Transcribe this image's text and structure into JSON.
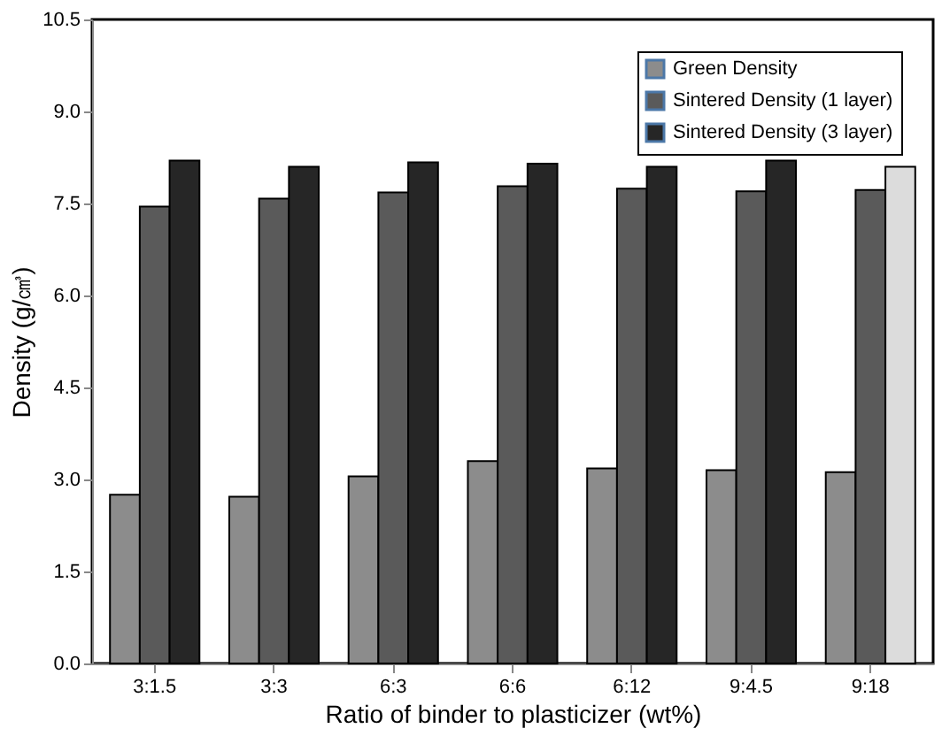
{
  "chart_data": {
    "type": "bar",
    "xlabel": "Ratio of binder to plasticizer (wt%)",
    "ylabel": "Density (g/㎤)",
    "categories": [
      "3:1.5",
      "3:3",
      "6:3",
      "6:6",
      "6:12",
      "9:4.5",
      "9:18"
    ],
    "series": [
      {
        "name": "Green Density",
        "color": "#8c8c8c",
        "values": [
          2.75,
          2.72,
          3.05,
          3.3,
          3.18,
          3.15,
          3.12
        ]
      },
      {
        "name": "Sintered Density (1 layer)",
        "color": "#5a5a5a",
        "values": [
          7.45,
          7.58,
          7.68,
          7.78,
          7.74,
          7.7,
          7.72
        ]
      },
      {
        "name": "Sintered Density (3 layer)",
        "color": "#262626",
        "colors": [
          "#262626",
          "#262626",
          "#262626",
          "#262626",
          "#262626",
          "#262626",
          "#dcdcdc"
        ],
        "values": [
          8.2,
          8.1,
          8.17,
          8.15,
          8.1,
          8.2,
          8.1
        ]
      }
    ],
    "ylim": [
      0,
      10.5
    ],
    "yticks": [
      {
        "value": 0,
        "label": "0.0"
      },
      {
        "value": 1.5,
        "label": "1.5"
      },
      {
        "value": 3,
        "label": "3.0"
      },
      {
        "value": 4.5,
        "label": "4.5"
      },
      {
        "value": 6,
        "label": "6.0"
      },
      {
        "value": 7.5,
        "label": "7.5"
      },
      {
        "value": 9,
        "label": "9.0"
      },
      {
        "value": 10.5,
        "label": "10.5"
      }
    ],
    "grid": false,
    "legend": "top right"
  }
}
